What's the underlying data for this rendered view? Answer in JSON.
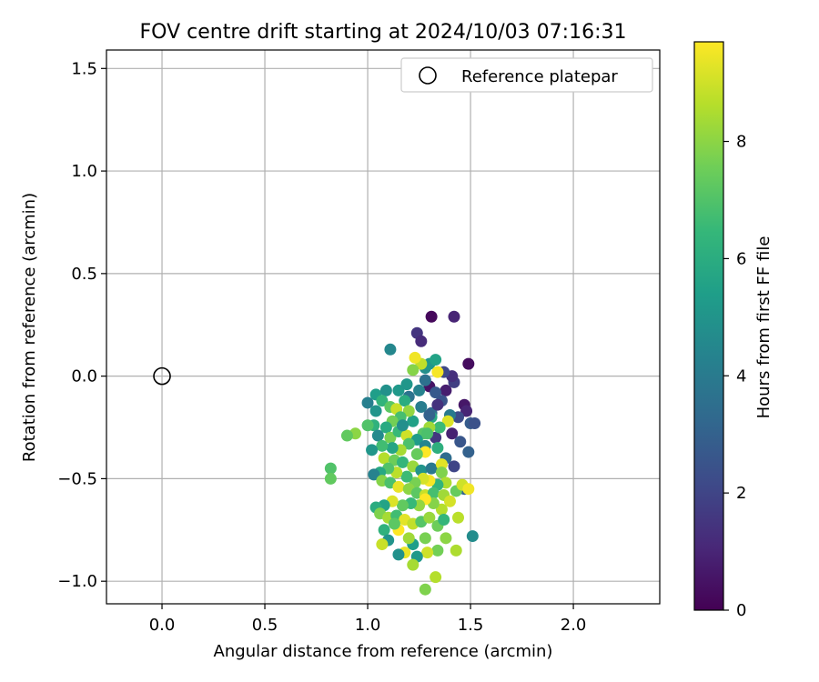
{
  "chart_data": {
    "type": "scatter",
    "title": "FOV centre drift starting at 2024/10/03 07:16:31",
    "xlabel": "Angular distance from reference (arcmin)",
    "ylabel": "Rotation from reference (arcmin)",
    "xlim": [
      -0.27,
      2.42
    ],
    "ylim": [
      -1.11,
      1.59
    ],
    "xticks": [
      0.0,
      0.5,
      1.0,
      1.5,
      2.0
    ],
    "xtick_labels": [
      "0.0",
      "0.5",
      "1.0",
      "1.5",
      "2.0"
    ],
    "yticks": [
      -1.0,
      -0.5,
      0.0,
      0.5,
      1.0,
      1.5
    ],
    "ytick_labels": [
      "−1.0",
      "−0.5",
      "0.0",
      "0.5",
      "1.0",
      "1.5"
    ],
    "grid": true,
    "legend": {
      "position": "upper right",
      "entries": [
        {
          "label": "Reference platepar",
          "marker": "open-circle"
        }
      ]
    },
    "reference_point": {
      "x": 0.0,
      "y": 0.0,
      "label": "Reference platepar"
    },
    "colorbar": {
      "label": "Hours from first FF file",
      "range": [
        0,
        9.7
      ],
      "ticks": [
        0,
        2,
        4,
        6,
        8
      ],
      "tick_labels": [
        "0",
        "2",
        "4",
        "6",
        "8"
      ],
      "colormap": "viridis",
      "colors": [
        "#440154",
        "#482878",
        "#3e4a89",
        "#31688e",
        "#26828e",
        "#1f9e89",
        "#35b779",
        "#6ece58",
        "#b5de2b",
        "#fde725"
      ]
    },
    "series": [
      {
        "points": [
          [
            1.31,
            0.29,
            0.2
          ],
          [
            1.42,
            0.29,
            1.0
          ],
          [
            1.49,
            0.06,
            0.3
          ],
          [
            1.24,
            0.21,
            1.5
          ],
          [
            1.26,
            0.17,
            1.2
          ],
          [
            1.3,
            -0.05,
            0.5
          ],
          [
            1.38,
            -0.07,
            0.8
          ],
          [
            1.42,
            -0.03,
            1.8
          ],
          [
            1.47,
            -0.14,
            0.6
          ],
          [
            1.48,
            -0.17,
            1.0
          ],
          [
            1.44,
            -0.2,
            2.2
          ],
          [
            1.5,
            -0.23,
            2.8
          ],
          [
            1.52,
            -0.23,
            2.4
          ],
          [
            1.41,
            -0.28,
            0.9
          ],
          [
            1.33,
            -0.3,
            1.6
          ],
          [
            1.45,
            -0.32,
            2.6
          ],
          [
            1.49,
            -0.37,
            3.0
          ],
          [
            1.38,
            -0.4,
            3.4
          ],
          [
            1.42,
            -0.44,
            2.0
          ],
          [
            1.47,
            -0.55,
            3.1
          ],
          [
            1.41,
            0.0,
            1.3
          ],
          [
            1.37,
            0.02,
            2.1
          ],
          [
            1.28,
            0.04,
            4.8
          ],
          [
            1.3,
            0.06,
            5.1
          ],
          [
            1.33,
            0.08,
            5.6
          ],
          [
            1.34,
            0.02,
            9.6
          ],
          [
            1.26,
            0.06,
            8.8
          ],
          [
            1.22,
            0.03,
            7.9
          ],
          [
            1.23,
            0.09,
            9.5
          ],
          [
            1.11,
            0.13,
            4.5
          ],
          [
            1.28,
            -0.02,
            3.6
          ],
          [
            1.33,
            -0.08,
            2.7
          ],
          [
            1.2,
            -0.1,
            3.7
          ],
          [
            1.15,
            -0.07,
            5.2
          ],
          [
            1.04,
            -0.09,
            5.4
          ],
          [
            1.09,
            -0.07,
            4.9
          ],
          [
            1.07,
            -0.12,
            6.3
          ],
          [
            1.0,
            -0.13,
            4.2
          ],
          [
            1.04,
            -0.17,
            5.0
          ],
          [
            1.11,
            -0.15,
            7.2
          ],
          [
            1.14,
            -0.16,
            8.9
          ],
          [
            1.18,
            -0.12,
            6.0
          ],
          [
            1.26,
            -0.15,
            4.1
          ],
          [
            1.31,
            -0.18,
            3.3
          ],
          [
            1.36,
            -0.12,
            2.5
          ],
          [
            1.4,
            -0.19,
            4.0
          ],
          [
            1.39,
            -0.22,
            9.2
          ],
          [
            1.35,
            -0.25,
            6.6
          ],
          [
            1.31,
            -0.2,
            5.8
          ],
          [
            1.3,
            -0.25,
            8.3
          ],
          [
            1.27,
            -0.28,
            7.1
          ],
          [
            1.22,
            -0.22,
            5.5
          ],
          [
            1.2,
            -0.17,
            8.1
          ],
          [
            1.16,
            -0.2,
            6.8
          ],
          [
            1.12,
            -0.22,
            7.6
          ],
          [
            1.09,
            -0.25,
            5.9
          ],
          [
            1.03,
            -0.24,
            6.2
          ],
          [
            1.0,
            -0.24,
            7.0
          ],
          [
            0.94,
            -0.28,
            8.0
          ],
          [
            0.9,
            -0.29,
            7.3
          ],
          [
            1.05,
            -0.29,
            4.6
          ],
          [
            1.11,
            -0.3,
            7.7
          ],
          [
            1.15,
            -0.27,
            6.5
          ],
          [
            1.19,
            -0.29,
            9.0
          ],
          [
            1.24,
            -0.31,
            5.3
          ],
          [
            1.28,
            -0.34,
            4.4
          ],
          [
            1.34,
            -0.35,
            6.1
          ],
          [
            1.28,
            -0.37,
            9.7
          ],
          [
            1.24,
            -0.38,
            7.4
          ],
          [
            1.2,
            -0.33,
            6.9
          ],
          [
            1.16,
            -0.36,
            8.4
          ],
          [
            1.12,
            -0.35,
            5.7
          ],
          [
            1.07,
            -0.34,
            6.7
          ],
          [
            1.02,
            -0.36,
            5.1
          ],
          [
            1.08,
            -0.4,
            8.6
          ],
          [
            1.13,
            -0.41,
            7.5
          ],
          [
            1.17,
            -0.42,
            6.4
          ],
          [
            1.22,
            -0.44,
            8.2
          ],
          [
            1.26,
            -0.46,
            5.0
          ],
          [
            1.31,
            -0.45,
            3.9
          ],
          [
            1.36,
            -0.43,
            9.3
          ],
          [
            1.36,
            -0.47,
            7.8
          ],
          [
            1.38,
            -0.52,
            8.5
          ],
          [
            1.34,
            -0.53,
            6.3
          ],
          [
            1.3,
            -0.51,
            9.6
          ],
          [
            1.27,
            -0.5,
            9.1
          ],
          [
            1.23,
            -0.52,
            7.7
          ],
          [
            1.19,
            -0.49,
            6.6
          ],
          [
            1.14,
            -0.47,
            8.7
          ],
          [
            1.1,
            -0.45,
            7.0
          ],
          [
            1.06,
            -0.47,
            5.8
          ],
          [
            1.03,
            -0.48,
            4.3
          ],
          [
            1.07,
            -0.51,
            7.9
          ],
          [
            1.11,
            -0.52,
            6.9
          ],
          [
            1.15,
            -0.54,
            9.4
          ],
          [
            1.2,
            -0.55,
            8.0
          ],
          [
            1.24,
            -0.57,
            7.2
          ],
          [
            1.28,
            -0.58,
            8.9
          ],
          [
            1.32,
            -0.57,
            6.8
          ],
          [
            1.37,
            -0.58,
            8.3
          ],
          [
            1.43,
            -0.56,
            7.4
          ],
          [
            1.46,
            -0.53,
            9.0
          ],
          [
            1.49,
            -0.55,
            9.5
          ],
          [
            1.4,
            -0.61,
            9.1
          ],
          [
            1.36,
            -0.65,
            8.6
          ],
          [
            1.32,
            -0.62,
            7.9
          ],
          [
            1.28,
            -0.6,
            9.7
          ],
          [
            1.25,
            -0.63,
            8.1
          ],
          [
            1.21,
            -0.62,
            6.5
          ],
          [
            1.17,
            -0.63,
            7.3
          ],
          [
            1.12,
            -0.61,
            9.2
          ],
          [
            1.08,
            -0.63,
            5.6
          ],
          [
            1.04,
            -0.64,
            6.0
          ],
          [
            1.06,
            -0.67,
            7.8
          ],
          [
            1.1,
            -0.69,
            8.4
          ],
          [
            1.14,
            -0.68,
            6.7
          ],
          [
            1.18,
            -0.7,
            9.3
          ],
          [
            1.22,
            -0.72,
            8.8
          ],
          [
            1.26,
            -0.71,
            7.1
          ],
          [
            1.3,
            -0.69,
            8.2
          ],
          [
            1.34,
            -0.73,
            7.5
          ],
          [
            1.37,
            -0.7,
            6.4
          ],
          [
            1.44,
            -0.69,
            8.7
          ],
          [
            1.51,
            -0.78,
            4.7
          ],
          [
            1.43,
            -0.85,
            8.5
          ],
          [
            1.38,
            -0.79,
            8.0
          ],
          [
            1.34,
            -0.85,
            7.6
          ],
          [
            1.29,
            -0.86,
            9.0
          ],
          [
            1.28,
            -0.79,
            7.7
          ],
          [
            1.22,
            -0.82,
            5.4
          ],
          [
            1.2,
            -0.79,
            8.3
          ],
          [
            1.15,
            -0.75,
            9.8
          ],
          [
            1.13,
            -0.72,
            7.2
          ],
          [
            1.08,
            -0.75,
            6.2
          ],
          [
            1.1,
            -0.8,
            5.0
          ],
          [
            1.07,
            -0.82,
            8.9
          ],
          [
            1.18,
            -0.86,
            9.4
          ],
          [
            1.15,
            -0.87,
            4.9
          ],
          [
            1.24,
            -0.88,
            5.2
          ],
          [
            1.22,
            -0.92,
            8.4
          ],
          [
            1.33,
            -0.98,
            8.6
          ],
          [
            1.28,
            -1.04,
            7.8
          ],
          [
            0.82,
            -0.45,
            7.0
          ],
          [
            0.82,
            -0.5,
            7.3
          ],
          [
            1.3,
            -0.19,
            3.0
          ],
          [
            1.25,
            -0.07,
            4.3
          ],
          [
            1.19,
            -0.04,
            5.1
          ],
          [
            1.34,
            -0.14,
            1.4
          ],
          [
            1.29,
            -0.28,
            6.9
          ],
          [
            1.17,
            -0.24,
            4.8
          ]
        ]
      }
    ]
  }
}
